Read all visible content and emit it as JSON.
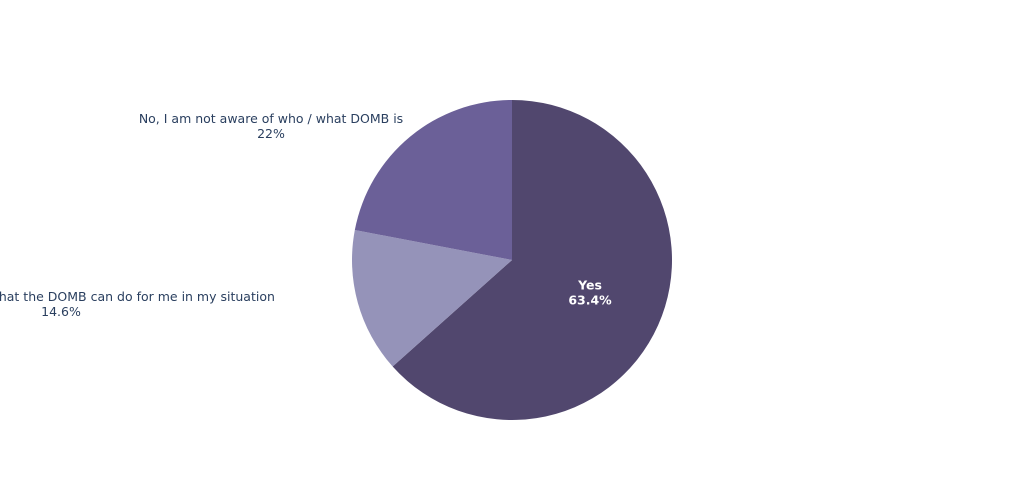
{
  "chart_data": {
    "type": "pie",
    "slices": [
      {
        "label": "Yes",
        "value": 63.4,
        "percent_text": "63.4%",
        "color": "#51476e",
        "label_position": "inside"
      },
      {
        "label": "Yes, but I do not  know what the DOMB can do for me in my situation",
        "value": 14.6,
        "percent_text": "14.6%",
        "color": "#9593b9",
        "label_position": "outside"
      },
      {
        "label": "No, I am not aware of who / what DOMB is",
        "value": 22.0,
        "percent_text": "22%",
        "color": "#6b6098",
        "label_position": "outside"
      }
    ],
    "direction": "clockwise",
    "start": "top"
  }
}
